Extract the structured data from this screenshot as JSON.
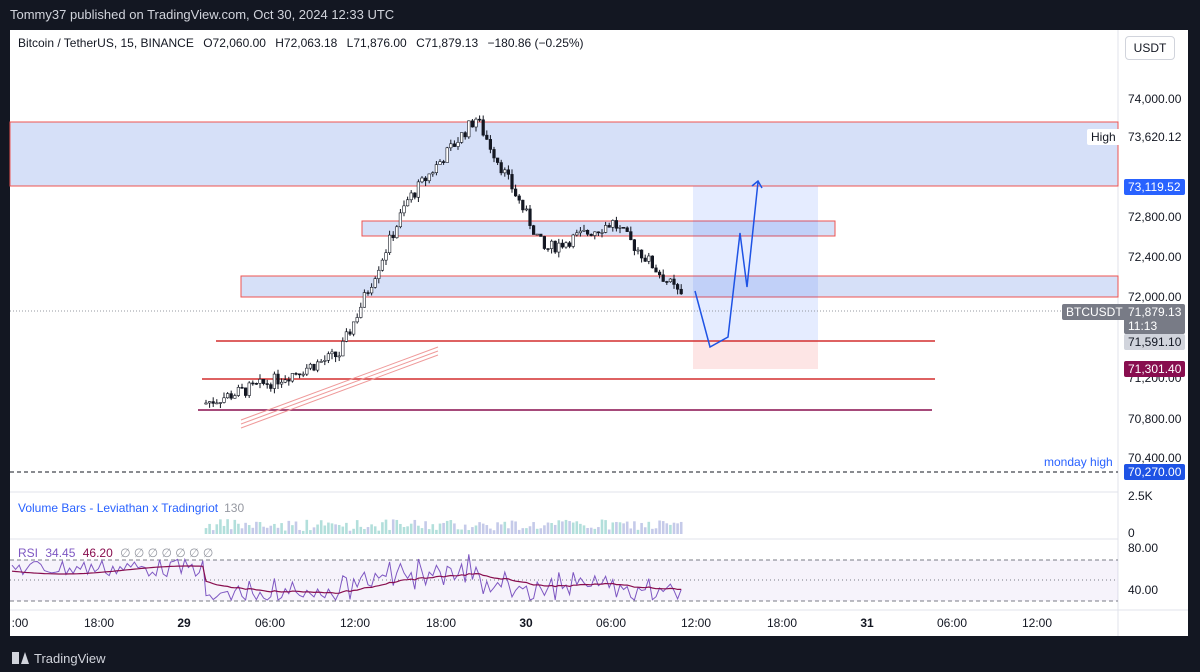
{
  "header": {
    "published": "Tommy37 published on TradingView.com, Oct 30, 2024 12:33 UTC"
  },
  "footer": {
    "brand": "TradingView"
  },
  "legend": {
    "symbol": "Bitcoin / TetherUS, 15, BINANCE",
    "open": "O72,060.00",
    "high": "H72,063.18",
    "low": "L71,876.00",
    "close": "C71,879.13",
    "change": "−180.86 (−0.25%)"
  },
  "volume_pane": {
    "label": "Volume Bars - Leviathan x Tradingriot",
    "value": "130",
    "axis": [
      "2.5K",
      "0"
    ]
  },
  "rsi_pane": {
    "label": "RSI",
    "v1": "34.45",
    "v2": "46.20",
    "zeros": "∅ ∅ ∅ ∅ ∅ ∅ ∅",
    "axis": [
      "80.00",
      "40.00"
    ]
  },
  "currency": "USDT",
  "price_axis": [
    "74,000.00",
    "72,800.00",
    "72,400.00",
    "72,000.00",
    "71,200.00",
    "70,800.00",
    "70,400.00"
  ],
  "badges": {
    "high_label": "High",
    "high_value": "73,620.12",
    "level_1": "73,119.52",
    "symbol": "BTCUSDT",
    "last": "71,879.13",
    "countdown": "11:13",
    "level_2": "71,591.10",
    "level_3": "71,301.40",
    "monday_label": "monday high",
    "monday_value": "70,270.00"
  },
  "time_axis": [
    ":00",
    "18:00",
    "29",
    "06:00",
    "12:00",
    "18:00",
    "30",
    "06:00",
    "12:00",
    "18:00",
    "31",
    "06:00",
    "12:00"
  ],
  "colors": {
    "bg": "#131722",
    "up": "#26a69a",
    "down": "#131722",
    "zone": "#c9d7f5",
    "red": "#e53935",
    "blue": "#2962ff",
    "rsi": "#7e57c2"
  },
  "chart_data": {
    "type": "candlestick",
    "title": "Bitcoin / TetherUS, 15, BINANCE",
    "ylim": [
      70100,
      74300
    ],
    "zones": [
      {
        "from": 73119.52,
        "to": 73620.12
      },
      {
        "from": 72680,
        "to": 72760
      },
      {
        "from": 72000,
        "to": 72160
      }
    ],
    "levels": [
      71591.1,
      71301.4,
      71010,
      70270.0
    ],
    "segments": [
      {
        "label": "",
        "start": 70900,
        "end": 71100
      },
      {
        "label": "",
        "start": 71100,
        "end": 71350
      },
      {
        "label": "",
        "start": 71350,
        "end": 72750
      },
      {
        "label": "",
        "start": 72750,
        "end": 73500
      },
      {
        "label": "",
        "start": 73500,
        "end": 72300
      },
      {
        "label": "",
        "start": 72300,
        "end": 72550
      },
      {
        "label": "",
        "start": 72550,
        "end": 71880
      }
    ]
  }
}
